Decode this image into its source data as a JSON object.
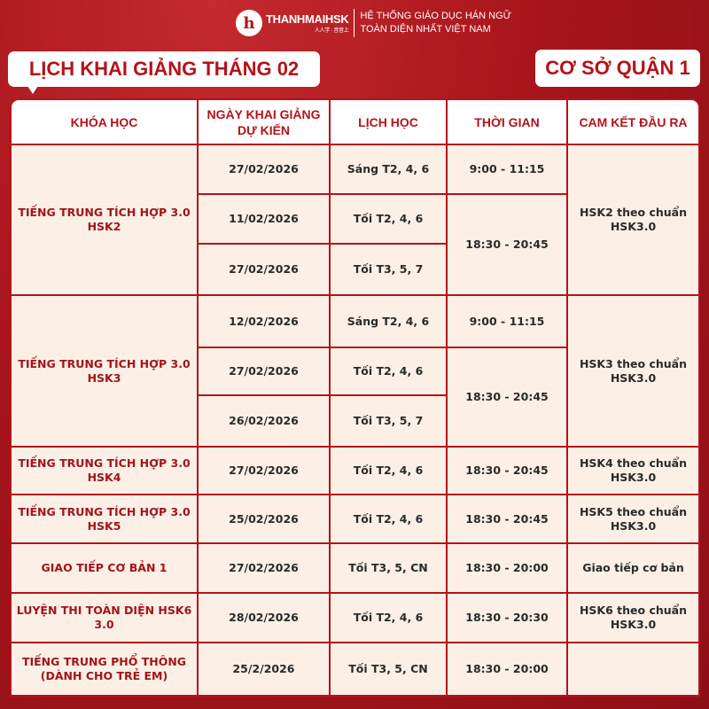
{
  "header": {
    "logo_text": "THANHMAIHSK",
    "logo_sub": "人人学 · 音音上",
    "tagline_1": "HỆ THỐNG GIÁO DỤC HÁN NGỮ",
    "tagline_2": "TOÀN DIỆN NHẤT VIỆT NAM"
  },
  "title": "LỊCH KHAI GIẢNG THÁNG 02",
  "branch": "CƠ SỞ QUẬN 1",
  "columns": [
    "KHÓA HỌC",
    "NGÀY KHAI GIẢNG DỰ KIẾN",
    "LỊCH HỌC",
    "THỜI GIAN",
    "CAM KẾT ĐẦU RA"
  ],
  "groups": [
    {
      "course": "TIẾNG TRUNG TÍCH HỢP 3.0 HSK2",
      "outcome": "HSK2 theo chuẩn HSK3.0",
      "rows": [
        {
          "date": "27/02/2026",
          "schedule": "Sáng T2, 4, 6",
          "time": "9:00 - 11:15"
        },
        {
          "date": "11/02/2026",
          "schedule": "Tối T2, 4, 6",
          "time": "18:30 - 20:45"
        },
        {
          "date": "27/02/2026",
          "schedule": "Tối T3, 5, 7"
        }
      ]
    },
    {
      "course": "TIẾNG TRUNG TÍCH HỢP 3.0 HSK3",
      "outcome": "HSK3 theo chuẩn HSK3.0",
      "rows": [
        {
          "date": "12/02/2026",
          "schedule": "Sáng T2, 4, 6",
          "time": "9:00 - 11:15"
        },
        {
          "date": "27/02/2026",
          "schedule": "Tối T2, 4, 6",
          "time": "18:30 - 20:45"
        },
        {
          "date": "26/02/2026",
          "schedule": "Tối T3, 5, 7"
        }
      ]
    },
    {
      "course": "TIẾNG TRUNG TÍCH HỢP 3.0 HSK4",
      "outcome": "HSK4 theo chuẩn HSK3.0",
      "rows": [
        {
          "date": "27/02/2026",
          "schedule": "Tối T2, 4, 6",
          "time": "18:30 - 20:45"
        }
      ]
    },
    {
      "course": "TIẾNG TRUNG TÍCH HỢP 3.0 HSK5",
      "outcome": "HSK5 theo chuẩn HSK3.0",
      "rows": [
        {
          "date": "25/02/2026",
          "schedule": "Tối T2, 4, 6",
          "time": "18:30 - 20:45"
        }
      ]
    },
    {
      "course": "GIAO TIẾP CƠ BẢN 1",
      "outcome": "Giao tiếp cơ bản",
      "rows": [
        {
          "date": "27/02/2026",
          "schedule": "Tối T3, 5, CN",
          "time": "18:30 - 20:00"
        }
      ]
    },
    {
      "course": "LUYỆN THI TOÀN DIỆN HSK6 3.0",
      "outcome": "HSK6 theo chuẩn HSK3.0",
      "rows": [
        {
          "date": "28/02/2026",
          "schedule": "Tối T2, 4, 6",
          "time": "18:30 - 20:30"
        }
      ]
    },
    {
      "course": "TIẾNG TRUNG PHỔ THÔNG (DÀNH CHO TRẺ EM)",
      "outcome": "",
      "rows": [
        {
          "date": "25/2/2026",
          "schedule": "Tối T3, 5, CN",
          "time": "18:30 - 20:00"
        }
      ]
    }
  ]
}
